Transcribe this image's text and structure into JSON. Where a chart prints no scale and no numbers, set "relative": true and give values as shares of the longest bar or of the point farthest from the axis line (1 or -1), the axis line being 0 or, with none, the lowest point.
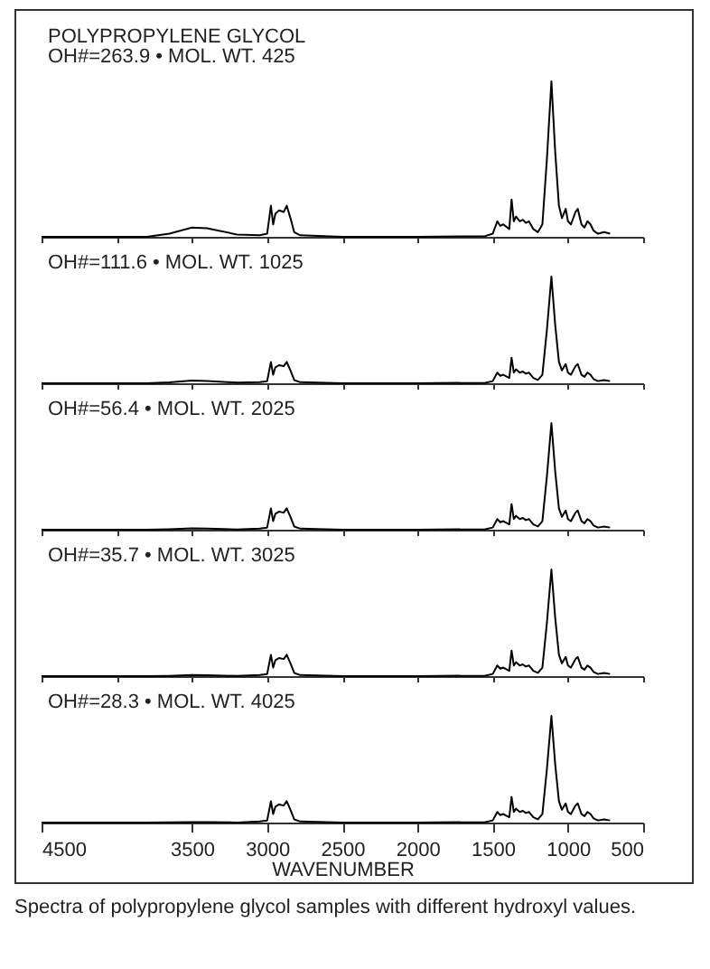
{
  "chart_data": [
    {
      "type": "line",
      "title": "POLYPROPYLENE GLYCOL",
      "subtitle": "OH#=263.9 • MOL. WT. 425",
      "relative": true,
      "tick_labels": false,
      "xlim": [
        4500,
        500
      ],
      "marker": "none",
      "xticks": [
        4500,
        4000,
        3500,
        3000,
        2500,
        2000,
        1500,
        1000,
        500
      ],
      "x": [
        4500,
        3800,
        3650,
        3500,
        3400,
        3200,
        3050,
        3000,
        2975,
        2960,
        2945,
        2920,
        2890,
        2870,
        2845,
        2820,
        2780,
        2500,
        2000,
        1550,
        1500,
        1470,
        1450,
        1430,
        1390,
        1375,
        1360,
        1345,
        1320,
        1300,
        1280,
        1260,
        1230,
        1200,
        1170,
        1140,
        1110,
        1085,
        1060,
        1040,
        1015,
        1000,
        980,
        950,
        935,
        910,
        890,
        870,
        850,
        830,
        800,
        760,
        720
      ],
      "series": [
        {
          "color": "#000000",
          "values": [
            0,
            0,
            0.02,
            0.06,
            0.055,
            0.015,
            0.01,
            0.02,
            0.2,
            0.08,
            0.15,
            0.17,
            0.16,
            0.2,
            0.12,
            0.03,
            0.01,
            0,
            0,
            0.005,
            0.02,
            0.1,
            0.07,
            0.08,
            0.05,
            0.24,
            0.1,
            0.13,
            0.1,
            0.11,
            0.09,
            0.1,
            0.05,
            0.03,
            0.08,
            0.5,
            1,
            0.55,
            0.2,
            0.12,
            0.18,
            0.1,
            0.08,
            0.16,
            0.18,
            0.08,
            0.06,
            0.1,
            0.08,
            0.04,
            0.02,
            0.03,
            0.02
          ]
        }
      ]
    },
    {
      "type": "line",
      "title": "OH#=111.6 • MOL. WT. 1025",
      "relative": true,
      "tick_labels": false,
      "xlim": [
        4500,
        500
      ],
      "marker": "none",
      "xticks": [
        4500,
        4000,
        3500,
        3000,
        2500,
        2000,
        1500,
        1000,
        500
      ],
      "x": [
        4500,
        3800,
        3650,
        3500,
        3400,
        3200,
        3050,
        3000,
        2975,
        2960,
        2945,
        2920,
        2890,
        2870,
        2845,
        2820,
        2780,
        2500,
        2000,
        1550,
        1500,
        1470,
        1450,
        1430,
        1390,
        1375,
        1360,
        1345,
        1320,
        1300,
        1280,
        1260,
        1230,
        1200,
        1170,
        1140,
        1110,
        1085,
        1060,
        1040,
        1015,
        1000,
        980,
        950,
        935,
        910,
        890,
        870,
        850,
        830,
        800,
        760,
        720
      ],
      "series": [
        {
          "color": "#000000",
          "values": [
            0,
            0,
            0.008,
            0.025,
            0.022,
            0.006,
            0.01,
            0.02,
            0.2,
            0.08,
            0.15,
            0.17,
            0.16,
            0.2,
            0.12,
            0.03,
            0.01,
            0,
            0,
            0.005,
            0.02,
            0.1,
            0.07,
            0.08,
            0.05,
            0.24,
            0.1,
            0.13,
            0.1,
            0.11,
            0.09,
            0.1,
            0.05,
            0.03,
            0.08,
            0.5,
            1,
            0.55,
            0.2,
            0.12,
            0.18,
            0.1,
            0.08,
            0.16,
            0.18,
            0.08,
            0.06,
            0.1,
            0.08,
            0.04,
            0.02,
            0.03,
            0.02
          ]
        }
      ]
    },
    {
      "type": "line",
      "title": "OH#=56.4 • MOL. WT. 2025",
      "relative": true,
      "tick_labels": false,
      "xlim": [
        4500,
        500
      ],
      "marker": "none",
      "xticks": [
        4500,
        4000,
        3500,
        3000,
        2500,
        2000,
        1500,
        1000,
        500
      ],
      "x": [
        4500,
        3800,
        3650,
        3500,
        3400,
        3200,
        3050,
        3000,
        2975,
        2960,
        2945,
        2920,
        2890,
        2870,
        2845,
        2820,
        2780,
        2500,
        2000,
        1550,
        1500,
        1470,
        1450,
        1430,
        1390,
        1375,
        1360,
        1345,
        1320,
        1300,
        1280,
        1260,
        1230,
        1200,
        1170,
        1140,
        1110,
        1085,
        1060,
        1040,
        1015,
        1000,
        980,
        950,
        935,
        910,
        890,
        870,
        850,
        830,
        800,
        760,
        720
      ],
      "series": [
        {
          "color": "#000000",
          "values": [
            0,
            0,
            0.004,
            0.012,
            0.01,
            0.003,
            0.01,
            0.02,
            0.2,
            0.08,
            0.15,
            0.17,
            0.16,
            0.2,
            0.12,
            0.03,
            0.01,
            0,
            0,
            0.005,
            0.02,
            0.1,
            0.07,
            0.08,
            0.05,
            0.24,
            0.1,
            0.13,
            0.1,
            0.11,
            0.09,
            0.1,
            0.05,
            0.03,
            0.08,
            0.5,
            1,
            0.55,
            0.2,
            0.12,
            0.18,
            0.1,
            0.08,
            0.16,
            0.18,
            0.08,
            0.06,
            0.1,
            0.08,
            0.04,
            0.02,
            0.03,
            0.02
          ]
        }
      ]
    },
    {
      "type": "line",
      "title": "OH#=35.7 • MOL. WT. 3025",
      "relative": true,
      "tick_labels": false,
      "xlim": [
        4500,
        500
      ],
      "marker": "none",
      "xticks": [
        4500,
        4000,
        3500,
        3000,
        2500,
        2000,
        1500,
        1000,
        500
      ],
      "x": [
        4500,
        3800,
        3650,
        3500,
        3400,
        3200,
        3050,
        3000,
        2975,
        2960,
        2945,
        2920,
        2890,
        2870,
        2845,
        2820,
        2780,
        2500,
        2000,
        1550,
        1500,
        1470,
        1450,
        1430,
        1390,
        1375,
        1360,
        1345,
        1320,
        1300,
        1280,
        1260,
        1230,
        1200,
        1170,
        1140,
        1110,
        1085,
        1060,
        1040,
        1015,
        1000,
        980,
        950,
        935,
        910,
        890,
        870,
        850,
        830,
        800,
        760,
        720
      ],
      "series": [
        {
          "color": "#000000",
          "values": [
            0,
            0,
            0.003,
            0.01,
            0.008,
            0.002,
            0.01,
            0.02,
            0.2,
            0.08,
            0.15,
            0.17,
            0.16,
            0.2,
            0.12,
            0.03,
            0.01,
            0,
            0,
            0.005,
            0.02,
            0.1,
            0.07,
            0.08,
            0.05,
            0.24,
            0.1,
            0.13,
            0.1,
            0.11,
            0.09,
            0.1,
            0.05,
            0.03,
            0.08,
            0.5,
            1,
            0.55,
            0.2,
            0.12,
            0.18,
            0.1,
            0.08,
            0.16,
            0.18,
            0.08,
            0.06,
            0.1,
            0.08,
            0.04,
            0.02,
            0.03,
            0.02
          ]
        }
      ]
    },
    {
      "type": "line",
      "title": "OH#=28.3 • MOL. WT. 4025",
      "xlabel": "WAVENUMBER",
      "relative": true,
      "tick_labels": "x",
      "xlim": [
        4500,
        500
      ],
      "marker": "none",
      "xticks": [
        4500,
        3500,
        3000,
        2500,
        2000,
        1500,
        1000,
        500
      ],
      "annotations": [
        "Spectra of polypropylene glycol samples with different hydroxyl values."
      ],
      "x": [
        4500,
        3800,
        3650,
        3500,
        3400,
        3200,
        3050,
        3000,
        2975,
        2960,
        2945,
        2920,
        2890,
        2870,
        2845,
        2820,
        2780,
        2500,
        2000,
        1550,
        1500,
        1470,
        1450,
        1430,
        1390,
        1375,
        1360,
        1345,
        1320,
        1300,
        1280,
        1260,
        1230,
        1200,
        1170,
        1140,
        1110,
        1085,
        1060,
        1040,
        1015,
        1000,
        980,
        950,
        935,
        910,
        890,
        870,
        850,
        830,
        800,
        760,
        720
      ],
      "series": [
        {
          "color": "#000000",
          "values": [
            0,
            0,
            0.002,
            0.005,
            0.004,
            0.001,
            0.01,
            0.02,
            0.2,
            0.08,
            0.15,
            0.17,
            0.16,
            0.2,
            0.12,
            0.03,
            0.01,
            0,
            0,
            0.005,
            0.02,
            0.1,
            0.07,
            0.08,
            0.05,
            0.24,
            0.1,
            0.13,
            0.1,
            0.11,
            0.09,
            0.1,
            0.05,
            0.03,
            0.08,
            0.5,
            1,
            0.55,
            0.2,
            0.12,
            0.18,
            0.1,
            0.08,
            0.16,
            0.18,
            0.08,
            0.06,
            0.1,
            0.08,
            0.04,
            0.02,
            0.03,
            0.02
          ]
        }
      ]
    }
  ]
}
